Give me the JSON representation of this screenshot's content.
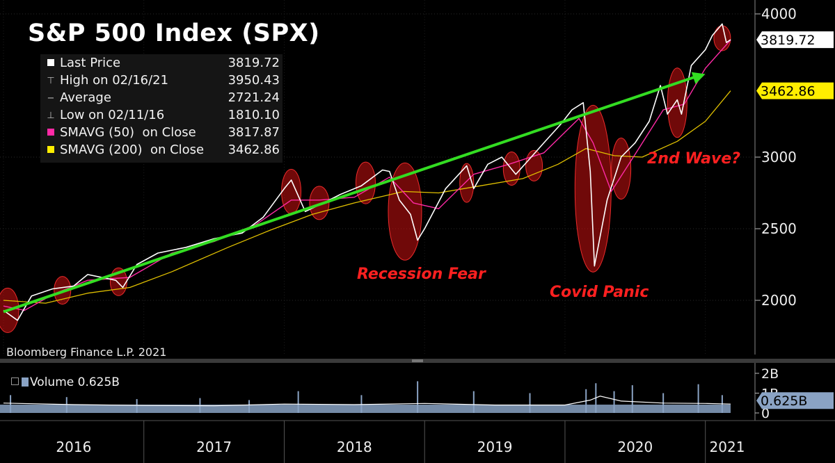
{
  "title": "S&P 500 Index (SPX)",
  "source": "Bloomberg Finance L.P. 2021",
  "legend": [
    {
      "label": "Last Price",
      "value": "3819.72",
      "color": "#ffffff",
      "symbol": "square"
    },
    {
      "label": "High on 02/16/21",
      "value": "3950.43",
      "color": "#bbbbbb",
      "symbol": "high-tick"
    },
    {
      "label": "Average",
      "value": "2721.24",
      "color": "#bbbbbb",
      "symbol": "avg-tick"
    },
    {
      "label": "Low on 02/11/16",
      "value": "1810.10",
      "color": "#bbbbbb",
      "symbol": "low-tick"
    },
    {
      "label": "SMAVG (50)  on Close",
      "value": "3817.87",
      "color": "#ff2aa6",
      "symbol": "square"
    },
    {
      "label": "SMAVG (200)  on Close",
      "value": "3462.86",
      "color": "#ffee00",
      "symbol": "square"
    }
  ],
  "price_tags": {
    "last": "3819.72",
    "sma200": "3462.86"
  },
  "volume": {
    "legend_label": "Volume 0.625B",
    "tag": "0.625B",
    "axis_ticks": [
      "2B",
      "1B",
      "0"
    ]
  },
  "annotations": {
    "recession": "Recession Fear",
    "covid": "Covid Panic",
    "second_wave": "2nd Wave?"
  },
  "colors": {
    "price": "#ffffff",
    "sma50": "#ff2aa6",
    "sma200": "#e0c000",
    "trend": "#33dd22",
    "volume": "#8aa3c4",
    "highlight": "#cc1111"
  },
  "chart_data": {
    "type": "line",
    "title": "S&P 500 Index (SPX)",
    "x_unit": "year",
    "x_categories": [
      "2016",
      "2017",
      "2018",
      "2019",
      "2020",
      "2021"
    ],
    "y_ticks": [
      2000,
      2500,
      3000,
      4000
    ],
    "ylim": [
      1700,
      4050
    ],
    "series": [
      {
        "name": "Last Price",
        "points": [
          [
            2016.0,
            1930
          ],
          [
            2016.1,
            1860
          ],
          [
            2016.2,
            2030
          ],
          [
            2016.35,
            2080
          ],
          [
            2016.5,
            2100
          ],
          [
            2016.6,
            2180
          ],
          [
            2016.8,
            2140
          ],
          [
            2016.85,
            2090
          ],
          [
            2016.95,
            2250
          ],
          [
            2017.1,
            2330
          ],
          [
            2017.3,
            2370
          ],
          [
            2017.5,
            2430
          ],
          [
            2017.7,
            2470
          ],
          [
            2017.85,
            2580
          ],
          [
            2018.0,
            2780
          ],
          [
            2018.05,
            2840
          ],
          [
            2018.15,
            2620
          ],
          [
            2018.3,
            2690
          ],
          [
            2018.4,
            2740
          ],
          [
            2018.55,
            2800
          ],
          [
            2018.7,
            2910
          ],
          [
            2018.75,
            2900
          ],
          [
            2018.82,
            2700
          ],
          [
            2018.9,
            2600
          ],
          [
            2018.95,
            2420
          ],
          [
            2019.0,
            2500
          ],
          [
            2019.15,
            2780
          ],
          [
            2019.3,
            2940
          ],
          [
            2019.35,
            2780
          ],
          [
            2019.45,
            2950
          ],
          [
            2019.55,
            3000
          ],
          [
            2019.65,
            2880
          ],
          [
            2019.75,
            2990
          ],
          [
            2019.85,
            3100
          ],
          [
            2019.97,
            3230
          ],
          [
            2020.05,
            3330
          ],
          [
            2020.13,
            3380
          ],
          [
            2020.18,
            2900
          ],
          [
            2020.21,
            2240
          ],
          [
            2020.3,
            2700
          ],
          [
            2020.4,
            3000
          ],
          [
            2020.5,
            3100
          ],
          [
            2020.6,
            3250
          ],
          [
            2020.68,
            3500
          ],
          [
            2020.73,
            3300
          ],
          [
            2020.8,
            3400
          ],
          [
            2020.83,
            3300
          ],
          [
            2020.9,
            3640
          ],
          [
            2021.0,
            3750
          ],
          [
            2021.05,
            3850
          ],
          [
            2021.12,
            3930
          ],
          [
            2021.15,
            3800
          ],
          [
            2021.18,
            3820
          ]
        ]
      },
      {
        "name": "SMAVG (50)  on Close",
        "points": [
          [
            2016.0,
            1960
          ],
          [
            2016.15,
            1930
          ],
          [
            2016.35,
            2040
          ],
          [
            2016.6,
            2140
          ],
          [
            2016.9,
            2160
          ],
          [
            2017.2,
            2330
          ],
          [
            2017.5,
            2410
          ],
          [
            2017.8,
            2530
          ],
          [
            2018.05,
            2700
          ],
          [
            2018.25,
            2700
          ],
          [
            2018.5,
            2720
          ],
          [
            2018.75,
            2860
          ],
          [
            2018.92,
            2680
          ],
          [
            2019.1,
            2640
          ],
          [
            2019.35,
            2880
          ],
          [
            2019.6,
            2950
          ],
          [
            2019.85,
            3030
          ],
          [
            2020.1,
            3270
          ],
          [
            2020.2,
            3100
          ],
          [
            2020.33,
            2760
          ],
          [
            2020.5,
            3020
          ],
          [
            2020.7,
            3330
          ],
          [
            2020.85,
            3370
          ],
          [
            2021.0,
            3620
          ],
          [
            2021.18,
            3818
          ]
        ]
      },
      {
        "name": "SMAVG (200)  on Close",
        "points": [
          [
            2016.0,
            2000
          ],
          [
            2016.3,
            1980
          ],
          [
            2016.6,
            2050
          ],
          [
            2016.9,
            2090
          ],
          [
            2017.2,
            2200
          ],
          [
            2017.6,
            2370
          ],
          [
            2017.9,
            2490
          ],
          [
            2018.2,
            2600
          ],
          [
            2018.5,
            2680
          ],
          [
            2018.85,
            2760
          ],
          [
            2019.1,
            2750
          ],
          [
            2019.4,
            2800
          ],
          [
            2019.7,
            2850
          ],
          [
            2019.95,
            2950
          ],
          [
            2020.15,
            3060
          ],
          [
            2020.35,
            3010
          ],
          [
            2020.55,
            3000
          ],
          [
            2020.8,
            3110
          ],
          [
            2021.0,
            3250
          ],
          [
            2021.18,
            3463
          ]
        ]
      }
    ],
    "trend_line": {
      "from": [
        2016.0,
        1920
      ],
      "to": [
        2021.0,
        3580
      ]
    },
    "volume_series": {
      "name": "Volume",
      "unit": "B",
      "ylim": [
        0,
        2
      ],
      "last": 0.625
    }
  }
}
